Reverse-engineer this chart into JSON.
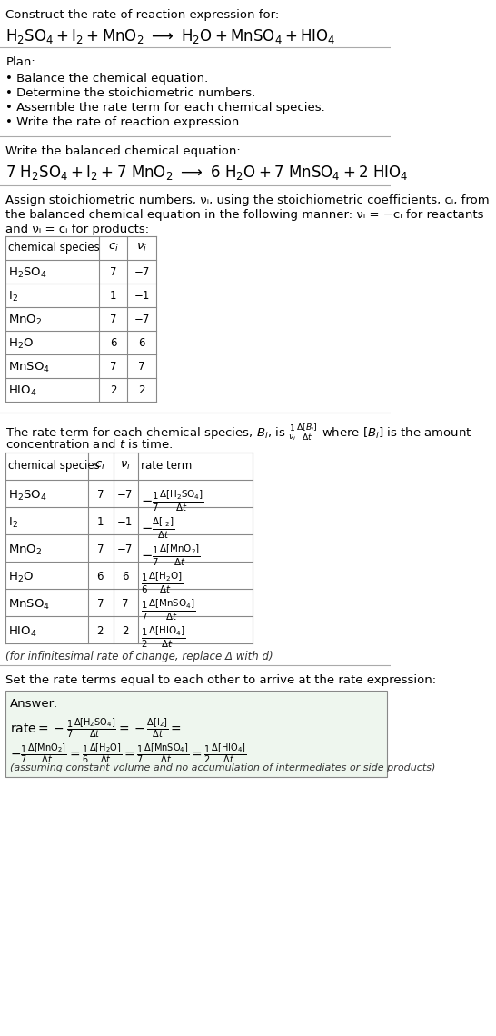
{
  "title_line1": "Construct the rate of reaction expression for:",
  "reaction_unbalanced": "H₂SO₄ + I₂ + MnO₂ → H₂O + MnSO₄ + HIO₄",
  "plan_header": "Plan:",
  "plan_items": [
    "• Balance the chemical equation.",
    "• Determine the stoichiometric numbers.",
    "• Assemble the rate term for each chemical species.",
    "• Write the rate of reaction expression."
  ],
  "balanced_header": "Write the balanced chemical equation:",
  "reaction_balanced": "7 H₂SO₄ + I₂ + 7 MnO₂ → 6 H₂O + 7 MnSO₄ + 2 HIO₄",
  "stoich_header_line1": "Assign stoichiometric numbers, νᵢ, using the stoichiometric coefficients, cᵢ, from",
  "stoich_header_line2": "the balanced chemical equation in the following manner: νᵢ = −cᵢ for reactants",
  "stoich_header_line3": "and νᵢ = cᵢ for products:",
  "table1_headers": [
    "chemical species",
    "cᵢ",
    "νᵢ"
  ],
  "table1_rows": [
    [
      "H₂SO₄",
      "7",
      "−7"
    ],
    [
      "I₂",
      "1",
      "−1"
    ],
    [
      "MnO₂",
      "7",
      "−7"
    ],
    [
      "H₂O",
      "6",
      "6"
    ],
    [
      "MnSO₄",
      "7",
      "7"
    ],
    [
      "HIO₄",
      "2",
      "2"
    ]
  ],
  "rate_header_line1": "The rate term for each chemical species, Bᵢ, is",
  "rate_header_line2": "concentration and t is time:",
  "table2_headers": [
    "chemical species",
    "cᵢ",
    "νᵢ",
    "rate term"
  ],
  "table2_rows": [
    [
      "H₂SO₄",
      "7",
      "−7",
      "−1/7 Δ[H₂SO₄]/Δt"
    ],
    [
      "I₂",
      "1",
      "−1",
      "−Δ[I₂]/Δt"
    ],
    [
      "MnO₂",
      "7",
      "−7",
      "−1/7 Δ[MnO₂]/Δt"
    ],
    [
      "H₂O",
      "6",
      "6",
      "1/6 Δ[H₂O]/Δt"
    ],
    [
      "MnSO₄",
      "7",
      "7",
      "1/7 Δ[MnSO₄]/Δt"
    ],
    [
      "HIO₄",
      "2",
      "2",
      "1/2 Δ[HIO₄]/Δt"
    ]
  ],
  "infinitesimal_note": "(for infinitesimal rate of change, replace Δ with d)",
  "set_rate_text": "Set the rate terms equal to each other to arrive at the rate expression:",
  "answer_label": "Answer:",
  "answer_box_color": "#e8f4e8",
  "bg_color": "#ffffff",
  "text_color": "#000000",
  "table_border_color": "#999999",
  "section_bg1": "#f5f5f5",
  "answer_rate_line1": "rate = −1/7 Δ[H₂SO₄]/Δt = −Δ[I₂]/Δt =",
  "answer_rate_line2": "−1/7 Δ[MnO₂]/Δt = 1/6 Δ[H₂O]/Δt = 1/7 Δ[MnSO₄]/Δt = 1/2 Δ[HIO₄]/Δt",
  "assuming_note": "(assuming constant volume and no accumulation of intermediates or side products)"
}
